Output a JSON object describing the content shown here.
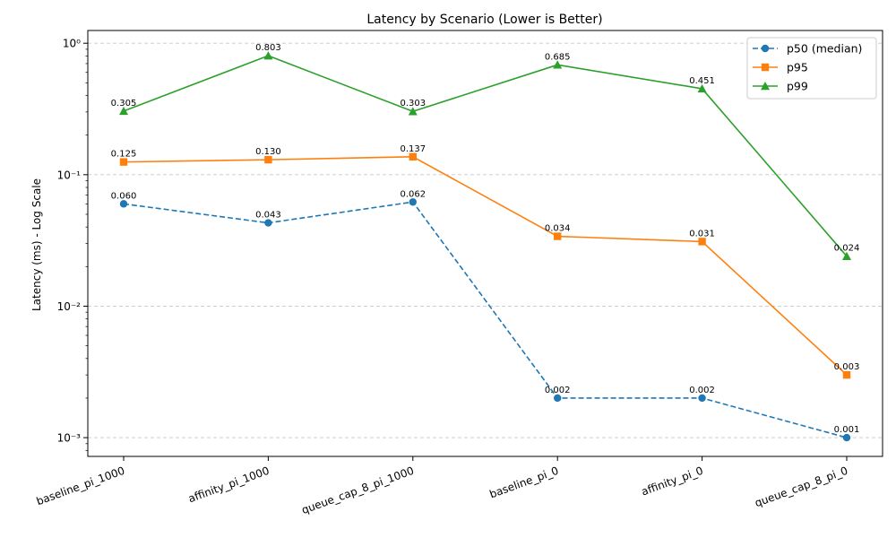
{
  "chart_data": {
    "type": "line",
    "title": "Latency by Scenario (Lower is Better)",
    "xlabel": "",
    "ylabel": "Latency (ms) - Log Scale",
    "yscale": "log",
    "ylim": [
      0.00072,
      1.25
    ],
    "y_ticks": [
      0.001,
      0.01,
      0.1,
      1
    ],
    "y_tick_labels": [
      "10⁻³",
      "10⁻²",
      "10⁻¹",
      "10⁰"
    ],
    "grid": "y-major-dashed",
    "legend_position": "top-right",
    "categories": [
      "baseline_pi_1000",
      "affinity_pi_1000",
      "queue_cap_8_pi_1000",
      "baseline_pi_0",
      "affinity_pi_0",
      "queue_cap_8_pi_0"
    ],
    "series": [
      {
        "name": "p50 (median)",
        "color": "#1f77b4",
        "marker": "circle",
        "line_style": "dashed",
        "values": [
          0.06,
          0.043,
          0.062,
          0.002,
          0.002,
          0.001
        ],
        "labels": [
          "0.060",
          "0.043",
          "0.062",
          "0.002",
          "0.002",
          "0.001"
        ]
      },
      {
        "name": "p95",
        "color": "#ff7f0e",
        "marker": "square",
        "line_style": "solid",
        "values": [
          0.125,
          0.13,
          0.137,
          0.034,
          0.031,
          0.003
        ],
        "labels": [
          "0.125",
          "0.130",
          "0.137",
          "0.034",
          "0.031",
          "0.003"
        ]
      },
      {
        "name": "p99",
        "color": "#2ca02c",
        "marker": "triangle",
        "line_style": "solid",
        "values": [
          0.305,
          0.803,
          0.303,
          0.685,
          0.451,
          0.024
        ],
        "labels": [
          "0.305",
          "0.803",
          "0.303",
          "0.685",
          "0.451",
          "0.024"
        ]
      }
    ]
  }
}
